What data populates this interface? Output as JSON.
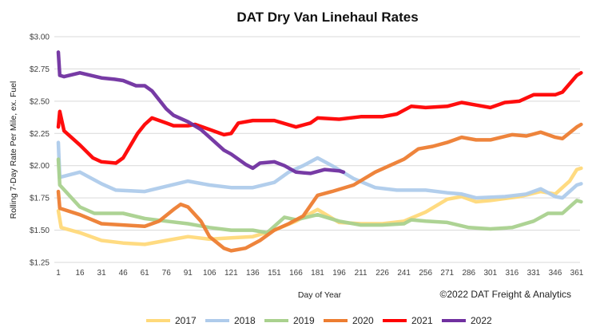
{
  "chart_data": {
    "type": "line",
    "title": "DAT Dry Van Linehaul Rates",
    "xlabel": "Day of Year",
    "ylabel": "Rolling 7-Day Rate Per Mile, ex. Fuel",
    "copyright": "©2022 DAT Freight & Analytics",
    "xlim": [
      1,
      365
    ],
    "ylim": [
      1.25,
      3.0
    ],
    "x_ticks": [
      1,
      16,
      31,
      46,
      61,
      76,
      91,
      106,
      121,
      136,
      151,
      166,
      181,
      196,
      211,
      226,
      241,
      256,
      271,
      286,
      301,
      316,
      331,
      346,
      361
    ],
    "y_ticks": [
      {
        "value": 3.0,
        "label": "$3.00"
      },
      {
        "value": 2.75,
        "label": "$2.75"
      },
      {
        "value": 2.5,
        "label": "$2.50"
      },
      {
        "value": 2.25,
        "label": "$2.25"
      },
      {
        "value": 2.0,
        "label": "$2.00"
      },
      {
        "value": 1.75,
        "label": "$1.75"
      },
      {
        "value": 1.5,
        "label": "$1.50"
      },
      {
        "value": 1.25,
        "label": "$1.25"
      }
    ],
    "grid": "horizontal",
    "legend": "bottom",
    "series": [
      {
        "name": "2017",
        "color": "#FFD97A",
        "x": [
          1,
          3,
          16,
          31,
          46,
          61,
          76,
          91,
          106,
          121,
          136,
          151,
          166,
          181,
          196,
          211,
          226,
          241,
          256,
          271,
          281,
          291,
          301,
          321,
          336,
          346,
          356,
          361,
          364
        ],
        "y": [
          1.65,
          1.52,
          1.48,
          1.42,
          1.4,
          1.39,
          1.42,
          1.45,
          1.43,
          1.44,
          1.45,
          1.5,
          1.57,
          1.66,
          1.56,
          1.55,
          1.55,
          1.57,
          1.64,
          1.74,
          1.76,
          1.72,
          1.73,
          1.76,
          1.8,
          1.78,
          1.88,
          1.97,
          1.98
        ]
      },
      {
        "name": "2018",
        "color": "#AECBEB",
        "x": [
          1,
          2,
          16,
          31,
          41,
          61,
          76,
          91,
          106,
          121,
          136,
          151,
          161,
          171,
          181,
          191,
          206,
          221,
          236,
          256,
          271,
          281,
          291,
          311,
          326,
          336,
          346,
          351,
          361,
          364
        ],
        "y": [
          2.18,
          1.91,
          1.95,
          1.86,
          1.81,
          1.8,
          1.84,
          1.88,
          1.85,
          1.83,
          1.83,
          1.87,
          1.95,
          2.0,
          2.06,
          2.0,
          1.9,
          1.83,
          1.81,
          1.81,
          1.79,
          1.78,
          1.75,
          1.76,
          1.78,
          1.82,
          1.76,
          1.75,
          1.85,
          1.86
        ]
      },
      {
        "name": "2019",
        "color": "#A9D18E",
        "x": [
          1,
          2,
          16,
          26,
          46,
          61,
          76,
          91,
          106,
          121,
          136,
          146,
          158,
          166,
          181,
          196,
          211,
          226,
          241,
          246,
          256,
          271,
          286,
          301,
          316,
          331,
          341,
          351,
          361,
          364
        ],
        "y": [
          2.05,
          1.85,
          1.68,
          1.63,
          1.63,
          1.59,
          1.57,
          1.55,
          1.52,
          1.5,
          1.5,
          1.48,
          1.6,
          1.58,
          1.62,
          1.57,
          1.54,
          1.54,
          1.55,
          1.58,
          1.57,
          1.56,
          1.52,
          1.51,
          1.52,
          1.57,
          1.63,
          1.63,
          1.73,
          1.72
        ]
      },
      {
        "name": "2020",
        "color": "#ED7D31",
        "x": [
          1,
          2,
          16,
          31,
          46,
          61,
          71,
          81,
          86,
          91,
          100,
          106,
          116,
          121,
          131,
          141,
          151,
          161,
          171,
          181,
          191,
          206,
          221,
          231,
          241,
          251,
          261,
          271,
          281,
          291,
          301,
          316,
          326,
          336,
          346,
          351,
          361,
          364
        ],
        "y": [
          1.8,
          1.67,
          1.62,
          1.55,
          1.54,
          1.53,
          1.57,
          1.66,
          1.7,
          1.68,
          1.57,
          1.45,
          1.36,
          1.34,
          1.36,
          1.42,
          1.5,
          1.55,
          1.61,
          1.77,
          1.8,
          1.85,
          1.95,
          2.0,
          2.05,
          2.13,
          2.15,
          2.18,
          2.22,
          2.2,
          2.2,
          2.24,
          2.23,
          2.26,
          2.22,
          2.21,
          2.3,
          2.32
        ]
      },
      {
        "name": "2021",
        "color": "#FF0000",
        "x": [
          1,
          2,
          5,
          16,
          25,
          31,
          41,
          46,
          56,
          61,
          66,
          76,
          81,
          91,
          96,
          106,
          116,
          121,
          126,
          136,
          151,
          166,
          176,
          181,
          196,
          211,
          226,
          236,
          246,
          256,
          271,
          281,
          291,
          301,
          311,
          321,
          331,
          346,
          351,
          361,
          364
        ],
        "y": [
          2.3,
          2.42,
          2.27,
          2.16,
          2.06,
          2.03,
          2.02,
          2.06,
          2.25,
          2.32,
          2.37,
          2.33,
          2.31,
          2.31,
          2.32,
          2.28,
          2.24,
          2.25,
          2.33,
          2.35,
          2.35,
          2.3,
          2.33,
          2.37,
          2.36,
          2.38,
          2.38,
          2.4,
          2.46,
          2.45,
          2.46,
          2.49,
          2.47,
          2.45,
          2.49,
          2.5,
          2.55,
          2.55,
          2.57,
          2.7,
          2.72
        ]
      },
      {
        "name": "2022",
        "color": "#7030A0",
        "x": [
          1,
          2,
          5,
          16,
          31,
          40,
          46,
          55,
          61,
          66,
          76,
          81,
          91,
          100,
          106,
          116,
          121,
          131,
          136,
          141,
          151,
          158,
          166,
          176,
          186,
          196,
          199
        ],
        "y": [
          2.88,
          2.7,
          2.69,
          2.72,
          2.68,
          2.67,
          2.66,
          2.62,
          2.62,
          2.58,
          2.44,
          2.39,
          2.34,
          2.28,
          2.22,
          2.12,
          2.09,
          2.01,
          1.98,
          2.02,
          2.03,
          2.0,
          1.95,
          1.94,
          1.97,
          1.96,
          1.95
        ]
      }
    ]
  }
}
